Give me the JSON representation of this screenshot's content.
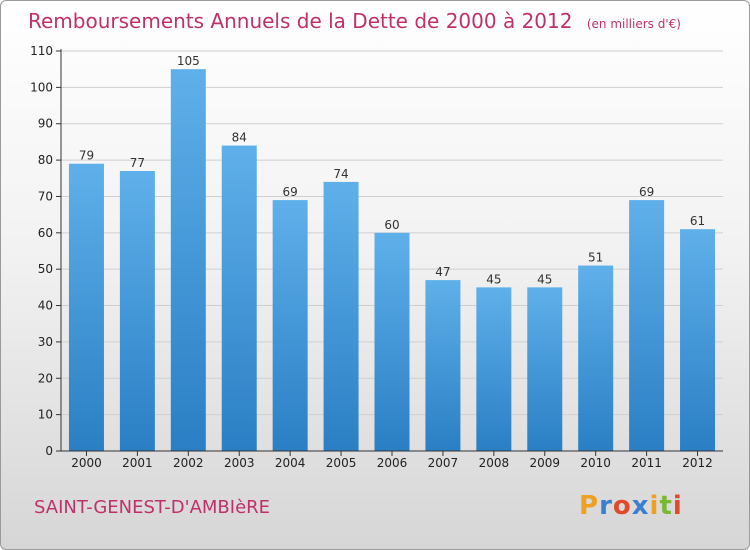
{
  "header": {
    "title": "Remboursements Annuels de la Dette de 2000 à 2012",
    "unit": "(en milliers d'€)"
  },
  "footer": {
    "city": "SAINT-GENEST-D'AMBIèRE",
    "logo_text": "Proxiti",
    "logo_colors": [
      "#f0a020",
      "#3a7fd0",
      "#e04a2a",
      "#3a7fd0",
      "#f0a020",
      "#7ab830",
      "#e04a2a"
    ]
  },
  "colors": {
    "bar_top": "#5fb0ea",
    "bar_bottom": "#2a7fc4",
    "axis": "#333333",
    "grid": "#cfcfcf",
    "accent": "#c0306a"
  },
  "chart_data": {
    "type": "bar",
    "title": "Remboursements Annuels de la Dette de 2000 à 2012",
    "xlabel": "",
    "ylabel": "",
    "categories": [
      "2000",
      "2001",
      "2002",
      "2003",
      "2004",
      "2005",
      "2006",
      "2007",
      "2008",
      "2009",
      "2010",
      "2011",
      "2012"
    ],
    "values": [
      79,
      77,
      105,
      84,
      69,
      74,
      60,
      47,
      45,
      45,
      51,
      69,
      61
    ],
    "ylim": [
      0,
      110
    ],
    "yticks": [
      0,
      10,
      20,
      30,
      40,
      50,
      60,
      70,
      80,
      90,
      100,
      110
    ],
    "grid": true,
    "data_labels": true
  }
}
